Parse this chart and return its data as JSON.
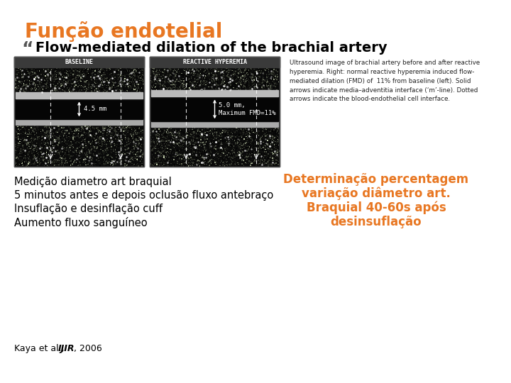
{
  "title": "Função endotelial",
  "subtitle": "Flow-mediated dilation of the brachial artery",
  "title_color": "#E87722",
  "subtitle_color": "#000000",
  "caption_text": "Ultrasound image of brachial artery before and after reactive\nhyperemia. Right: normal reactive hyperemia induced flow-\nmediated dilation (FMD) of  11% from baseline (left). Solid\narrows indicate media–adventitia interface (‘m’-line). Dotted\narrows indicate the blood-endothelial cell interface.",
  "caption_color": "#222222",
  "left_text_lines": [
    "Medição diametro art braquial",
    "5 minutos antes e depois oclusão fluxo antebraço",
    "Insuflação e desinflação cuff",
    "Aumento fluxo sanguíneo"
  ],
  "left_text_color": "#000000",
  "right_text_line1": "Determinação percentagem",
  "right_text_line2": "variação diâmetro art.",
  "right_text_line3": "Braquial 40-60s após",
  "right_text_line4": "desinsuflação",
  "right_text_color": "#E87722",
  "footer_text_normal": "Kaya et al., ",
  "footer_text_italic": "IJIR",
  "footer_text_end": ", 2006",
  "footer_color": "#000000",
  "bg_color": "#FFFFFF",
  "baseline_label": "BASELINE",
  "reactive_label": "REACTIVE HYPEREMIA"
}
